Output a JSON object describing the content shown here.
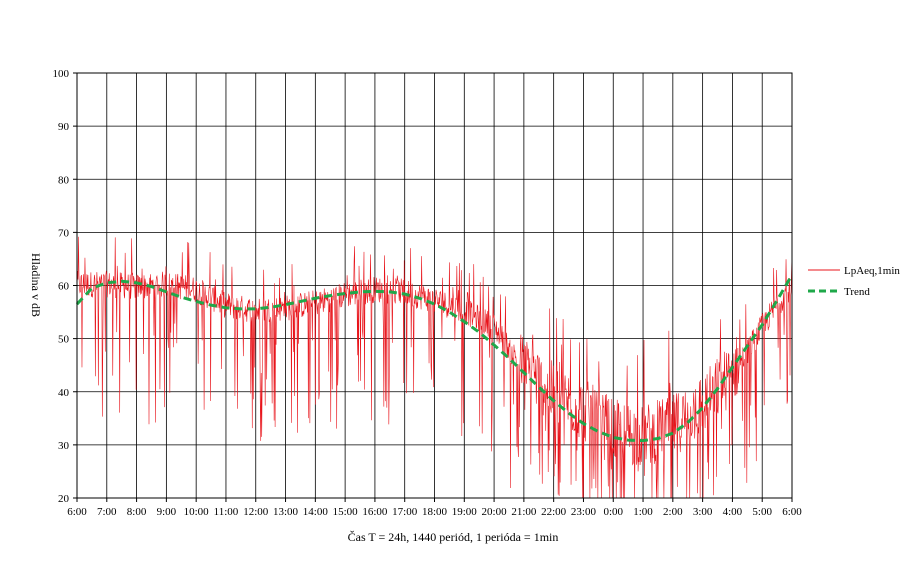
{
  "chart_data": {
    "type": "line",
    "xlabel": "Čas T = 24h, 1440 periód, 1 perióda = 1min",
    "ylabel": "Hladina v dB",
    "ylim": [
      20,
      100
    ],
    "y_ticks": [
      20,
      30,
      40,
      50,
      60,
      70,
      80,
      90,
      100
    ],
    "x_ticks": [
      "6:00",
      "7:00",
      "8:00",
      "9:00",
      "10:00",
      "11:00",
      "12:00",
      "13:00",
      "14:00",
      "15:00",
      "16:00",
      "17:00",
      "18:00",
      "19:00",
      "20:00",
      "21:00",
      "22:00",
      "23:00",
      "0:00",
      "1:00",
      "2:00",
      "3:00",
      "4:00",
      "5:00",
      "6:00"
    ],
    "grid": true,
    "legend_position": "right",
    "series": [
      {
        "name": "LpAeq,1min",
        "color": "#e8141b",
        "style": "thin-solid",
        "hourly_base_db": [
          60,
          60,
          59.5,
          60,
          59,
          56,
          55,
          55.5,
          56.5,
          58,
          59,
          58.5,
          57,
          55,
          52,
          44,
          39,
          36,
          32,
          31,
          33,
          37,
          43,
          52,
          60
        ],
        "approx_min_db": 20,
        "approx_max_db": 70
      },
      {
        "name": "Trend",
        "color": "#1fa84a",
        "style": "dashed",
        "x_hours_from_start": [
          0,
          0.5,
          1,
          1.5,
          2,
          2.5,
          3,
          3.5,
          4,
          4.5,
          5,
          5.5,
          6,
          6.5,
          7,
          7.5,
          8,
          8.5,
          9,
          9.5,
          10,
          10.5,
          11,
          11.5,
          12,
          12.5,
          13,
          13.5,
          14,
          14.5,
          15,
          15.5,
          16,
          16.5,
          17,
          17.5,
          18,
          18.5,
          19,
          19.5,
          20,
          20.5,
          21,
          21.5,
          22,
          22.5,
          23,
          23.5,
          24
        ],
        "y_db": [
          56.5,
          59.5,
          60.5,
          60.8,
          60.5,
          59.8,
          58.8,
          57.8,
          57,
          56.3,
          55.8,
          55.6,
          55.6,
          55.9,
          56.4,
          57,
          57.6,
          58.1,
          58.5,
          58.8,
          58.9,
          58.8,
          58.4,
          57.6,
          56.5,
          55,
          53.2,
          51.2,
          48.8,
          46.3,
          43.6,
          40.9,
          38.3,
          36,
          34,
          32.5,
          31.4,
          30.9,
          30.8,
          31.2,
          32.2,
          34.2,
          37,
          40.6,
          44.6,
          48.6,
          52.6,
          57.2,
          62
        ]
      }
    ]
  }
}
